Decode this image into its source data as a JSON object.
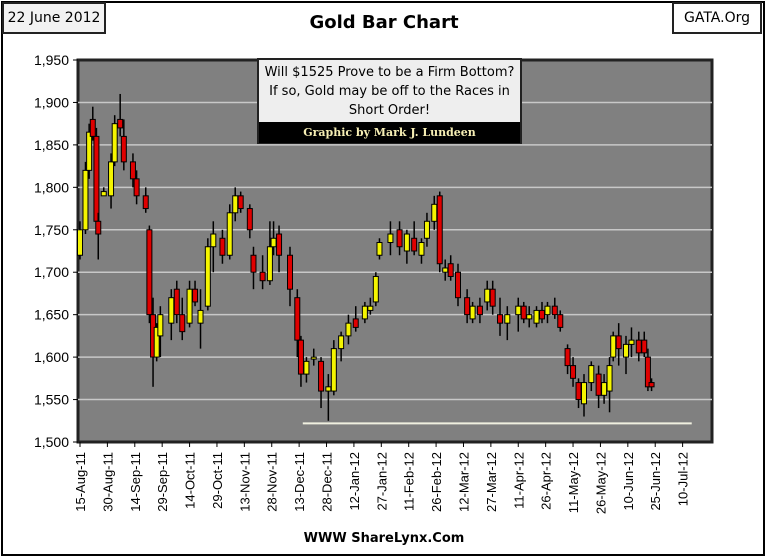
{
  "header": {
    "date": "22 June 2012",
    "source": "GATA.Org"
  },
  "footer": "WWW ShareLynx.Com",
  "annotation": {
    "question": "Will $1525 Prove to be a Firm Bottom?  If so, Gold may be off to the Races in Short Order!",
    "credit": "Graphic by Mark J. Lundeen"
  },
  "colors": {
    "plot_bg": "#808080",
    "up": "#f5f500",
    "down": "#e00000",
    "support": "#f0f0e0"
  },
  "chart_data": {
    "type": "candlestick",
    "title": "Gold Bar Chart",
    "xlabel": "",
    "ylabel": "",
    "ylim": [
      1500,
      1950
    ],
    "yticks": [
      1500,
      1550,
      1600,
      1650,
      1700,
      1750,
      1800,
      1850,
      1900,
      1950
    ],
    "ytick_labels": [
      "1,500",
      "1,550",
      "1,600",
      "1,650",
      "1,700",
      "1,750",
      "1,800",
      "1,850",
      "1,900",
      "1,950"
    ],
    "xlim_days_from_15Aug11": [
      0,
      345
    ],
    "xtick_step_days": 15,
    "xtick_labels": [
      "15-Aug-11",
      "30-Aug-11",
      "14-Sep-11",
      "29-Sep-11",
      "14-Oct-11",
      "29-Oct-11",
      "13-Nov-11",
      "28-Nov-11",
      "13-Dec-11",
      "28-Dec-11",
      "12-Jan-12",
      "27-Jan-12",
      "11-Feb-12",
      "26-Feb-12",
      "12-Mar-12",
      "27-Mar-12",
      "11-Apr-12",
      "26-Apr-12",
      "11-May-12",
      "26-May-12",
      "10-Jun-12",
      "25-Jun-12",
      "10-Jul-12"
    ],
    "grid": true,
    "support_line": {
      "value": 1522,
      "from_day": 122,
      "to_day": 335
    },
    "candles_day_open_high_low_close": [
      [
        0,
        1720,
        1760,
        1715,
        1750
      ],
      [
        3,
        1750,
        1830,
        1745,
        1820
      ],
      [
        5,
        1820,
        1875,
        1810,
        1865
      ],
      [
        7,
        1880,
        1895,
        1855,
        1860
      ],
      [
        9,
        1860,
        1870,
        1750,
        1760
      ],
      [
        10,
        1760,
        1770,
        1715,
        1745
      ],
      [
        13,
        1790,
        1800,
        1790,
        1795
      ],
      [
        17,
        1790,
        1840,
        1775,
        1830
      ],
      [
        19,
        1830,
        1885,
        1825,
        1875
      ],
      [
        22,
        1880,
        1910,
        1860,
        1870
      ],
      [
        24,
        1860,
        1880,
        1820,
        1830
      ],
      [
        29,
        1830,
        1840,
        1800,
        1810
      ],
      [
        31,
        1810,
        1820,
        1780,
        1790
      ],
      [
        36,
        1790,
        1800,
        1770,
        1775
      ],
      [
        38,
        1750,
        1755,
        1640,
        1650
      ],
      [
        40,
        1650,
        1670,
        1565,
        1600
      ],
      [
        42,
        1600,
        1640,
        1595,
        1635
      ],
      [
        44,
        1625,
        1660,
        1600,
        1650
      ],
      [
        50,
        1640,
        1680,
        1620,
        1670
      ],
      [
        53,
        1680,
        1690,
        1640,
        1650
      ],
      [
        56,
        1650,
        1670,
        1620,
        1630
      ],
      [
        60,
        1640,
        1690,
        1635,
        1680
      ],
      [
        63,
        1680,
        1690,
        1660,
        1665
      ],
      [
        66,
        1640,
        1680,
        1610,
        1655
      ],
      [
        70,
        1660,
        1740,
        1655,
        1730
      ],
      [
        73,
        1730,
        1760,
        1700,
        1745
      ],
      [
        78,
        1740,
        1750,
        1710,
        1720
      ],
      [
        82,
        1720,
        1780,
        1715,
        1770
      ],
      [
        85,
        1770,
        1800,
        1760,
        1790
      ],
      [
        88,
        1790,
        1795,
        1770,
        1775
      ],
      [
        93,
        1775,
        1780,
        1740,
        1750
      ],
      [
        95,
        1720,
        1730,
        1680,
        1700
      ],
      [
        100,
        1700,
        1720,
        1680,
        1690
      ],
      [
        104,
        1690,
        1760,
        1685,
        1730
      ],
      [
        106,
        1730,
        1760,
        1720,
        1740
      ],
      [
        109,
        1745,
        1755,
        1700,
        1720
      ],
      [
        115,
        1720,
        1730,
        1660,
        1680
      ],
      [
        119,
        1670,
        1680,
        1600,
        1620
      ],
      [
        121,
        1620,
        1625,
        1565,
        1580
      ],
      [
        124,
        1580,
        1600,
        1570,
        1595
      ],
      [
        128,
        1600,
        1610,
        1590,
        1600
      ],
      [
        132,
        1595,
        1600,
        1540,
        1560
      ],
      [
        136,
        1560,
        1580,
        1525,
        1565
      ],
      [
        139,
        1560,
        1620,
        1555,
        1610
      ],
      [
        143,
        1610,
        1630,
        1595,
        1625
      ],
      [
        147,
        1625,
        1650,
        1615,
        1640
      ],
      [
        151,
        1645,
        1660,
        1630,
        1635
      ],
      [
        156,
        1645,
        1665,
        1640,
        1660
      ],
      [
        159,
        1655,
        1670,
        1650,
        1660
      ],
      [
        162,
        1665,
        1700,
        1660,
        1695
      ],
      [
        164,
        1720,
        1740,
        1715,
        1735
      ],
      [
        170,
        1735,
        1760,
        1720,
        1745
      ],
      [
        175,
        1750,
        1760,
        1720,
        1730
      ],
      [
        179,
        1725,
        1750,
        1710,
        1745
      ],
      [
        183,
        1740,
        1760,
        1720,
        1725
      ],
      [
        187,
        1720,
        1740,
        1710,
        1735
      ],
      [
        190,
        1740,
        1770,
        1730,
        1760
      ],
      [
        194,
        1760,
        1790,
        1750,
        1780
      ],
      [
        197,
        1790,
        1795,
        1700,
        1710
      ],
      [
        200,
        1700,
        1715,
        1690,
        1705
      ],
      [
        203,
        1710,
        1720,
        1690,
        1695
      ],
      [
        207,
        1700,
        1710,
        1660,
        1670
      ],
      [
        212,
        1670,
        1680,
        1640,
        1650
      ],
      [
        215,
        1645,
        1665,
        1640,
        1660
      ],
      [
        219,
        1660,
        1670,
        1640,
        1650
      ],
      [
        223,
        1665,
        1690,
        1655,
        1680
      ],
      [
        226,
        1680,
        1690,
        1650,
        1660
      ],
      [
        230,
        1650,
        1670,
        1625,
        1640
      ],
      [
        234,
        1640,
        1660,
        1620,
        1650
      ],
      [
        240,
        1650,
        1670,
        1630,
        1660
      ],
      [
        243,
        1660,
        1665,
        1640,
        1645
      ],
      [
        246,
        1645,
        1660,
        1635,
        1650
      ],
      [
        250,
        1640,
        1660,
        1635,
        1655
      ],
      [
        253,
        1655,
        1665,
        1640,
        1645
      ],
      [
        256,
        1650,
        1665,
        1640,
        1660
      ],
      [
        260,
        1660,
        1670,
        1645,
        1650
      ],
      [
        263,
        1650,
        1655,
        1630,
        1635
      ],
      [
        267,
        1610,
        1615,
        1580,
        1590
      ],
      [
        270,
        1590,
        1600,
        1565,
        1575
      ],
      [
        273,
        1570,
        1575,
        1540,
        1550
      ],
      [
        276,
        1545,
        1580,
        1530,
        1570
      ],
      [
        280,
        1570,
        1595,
        1560,
        1590
      ],
      [
        284,
        1580,
        1590,
        1540,
        1555
      ],
      [
        287,
        1555,
        1580,
        1545,
        1570
      ],
      [
        290,
        1560,
        1600,
        1535,
        1590
      ],
      [
        292,
        1600,
        1630,
        1595,
        1625
      ],
      [
        295,
        1625,
        1640,
        1590,
        1610
      ],
      [
        299,
        1600,
        1625,
        1580,
        1615
      ],
      [
        302,
        1615,
        1635,
        1600,
        1620
      ],
      [
        306,
        1620,
        1630,
        1595,
        1605
      ],
      [
        309,
        1620,
        1630,
        1600,
        1605
      ],
      [
        311,
        1600,
        1610,
        1560,
        1565
      ],
      [
        313,
        1570,
        1575,
        1560,
        1565
      ]
    ]
  }
}
